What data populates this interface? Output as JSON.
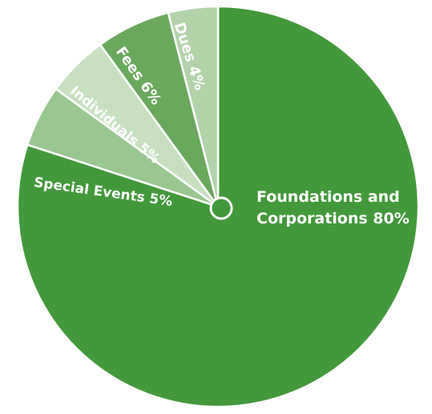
{
  "chart_data": {
    "type": "pie",
    "start_angle_deg": 0,
    "direction": "clockwise",
    "slices": [
      {
        "label": "Foundations and Corporations 80%",
        "lines": [
          "Foundations and",
          "Corporations 80%"
        ],
        "value": 80,
        "color": "#43983b"
      },
      {
        "label": "Special Events 5%",
        "lines": [
          "Special Events 5%"
        ],
        "value": 5,
        "color": "#98c78f"
      },
      {
        "label": "Individuals 5%",
        "lines": [
          "Individuals 5%"
        ],
        "value": 5,
        "color": "#c7e1c0"
      },
      {
        "label": "Fees 6%",
        "lines": [
          "Fees 6%"
        ],
        "value": 6,
        "color": "#69a85d"
      },
      {
        "label": "Dues 4%",
        "lines": [
          "Dues 4%"
        ],
        "value": 4,
        "color": "#b3d3aa"
      }
    ],
    "center_dot_color": "#43983b",
    "separator_color": "#ffffff"
  }
}
